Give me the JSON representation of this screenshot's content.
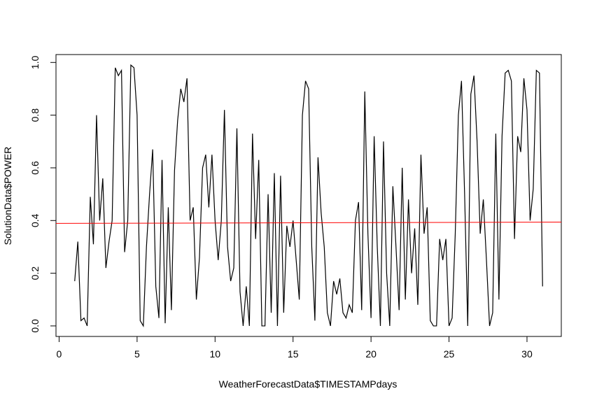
{
  "chart_data": {
    "type": "line",
    "xlabel": "WeatherForecastData$TIMESTAMPdays",
    "ylabel": "SolutionData$POWER",
    "x": [
      1.0,
      1.2,
      1.4,
      1.6,
      1.8,
      2.0,
      2.2,
      2.4,
      2.6,
      2.8,
      3.0,
      3.2,
      3.4,
      3.6,
      3.8,
      4.0,
      4.2,
      4.4,
      4.6,
      4.8,
      5.0,
      5.2,
      5.4,
      5.6,
      5.8,
      6.0,
      6.2,
      6.4,
      6.6,
      6.8,
      7.0,
      7.2,
      7.4,
      7.6,
      7.8,
      8.0,
      8.2,
      8.4,
      8.6,
      8.8,
      9.0,
      9.2,
      9.4,
      9.6,
      9.8,
      10.0,
      10.2,
      10.4,
      10.6,
      10.8,
      11.0,
      11.2,
      11.4,
      11.6,
      11.8,
      12.0,
      12.2,
      12.4,
      12.6,
      12.8,
      13.0,
      13.2,
      13.4,
      13.6,
      13.8,
      14.0,
      14.2,
      14.4,
      14.6,
      14.8,
      15.0,
      15.2,
      15.4,
      15.6,
      15.8,
      16.0,
      16.2,
      16.4,
      16.6,
      16.8,
      17.0,
      17.2,
      17.4,
      17.6,
      17.8,
      18.0,
      18.2,
      18.4,
      18.6,
      18.8,
      19.0,
      19.2,
      19.4,
      19.6,
      19.8,
      20.0,
      20.2,
      20.4,
      20.6,
      20.8,
      21.0,
      21.2,
      21.4,
      21.6,
      21.8,
      22.0,
      22.2,
      22.4,
      22.6,
      22.8,
      23.0,
      23.2,
      23.4,
      23.6,
      23.8,
      24.0,
      24.2,
      24.4,
      24.6,
      24.8,
      25.0,
      25.2,
      25.4,
      25.6,
      25.8,
      26.0,
      26.2,
      26.4,
      26.6,
      26.8,
      27.0,
      27.2,
      27.4,
      27.6,
      27.8,
      28.0,
      28.2,
      28.4,
      28.6,
      28.8,
      29.0,
      29.2,
      29.4,
      29.6,
      29.8,
      30.0,
      30.2,
      30.4,
      30.6,
      30.8,
      31.0
    ],
    "series": [
      {
        "color": "#000000",
        "values": [
          0.17,
          0.32,
          0.02,
          0.03,
          0.0,
          0.49,
          0.31,
          0.8,
          0.4,
          0.56,
          0.22,
          0.32,
          0.4,
          0.98,
          0.95,
          0.97,
          0.28,
          0.4,
          0.99,
          0.98,
          0.8,
          0.02,
          0.0,
          0.3,
          0.5,
          0.67,
          0.15,
          0.03,
          0.63,
          0.01,
          0.45,
          0.06,
          0.59,
          0.78,
          0.9,
          0.85,
          0.94,
          0.4,
          0.45,
          0.1,
          0.26,
          0.6,
          0.65,
          0.45,
          0.65,
          0.4,
          0.25,
          0.4,
          0.82,
          0.3,
          0.17,
          0.22,
          0.75,
          0.13,
          0.0,
          0.15,
          0.0,
          0.73,
          0.33,
          0.63,
          0.0,
          0.0,
          0.5,
          0.05,
          0.58,
          0.0,
          0.57,
          0.05,
          0.38,
          0.3,
          0.4,
          0.25,
          0.1,
          0.8,
          0.93,
          0.9,
          0.3,
          0.02,
          0.64,
          0.43,
          0.3,
          0.05,
          0.0,
          0.17,
          0.12,
          0.18,
          0.05,
          0.03,
          0.08,
          0.05,
          0.4,
          0.47,
          0.06,
          0.89,
          0.35,
          0.03,
          0.72,
          0.3,
          0.0,
          0.7,
          0.2,
          0.0,
          0.53,
          0.3,
          0.06,
          0.6,
          0.1,
          0.48,
          0.2,
          0.37,
          0.08,
          0.65,
          0.35,
          0.45,
          0.02,
          0.0,
          0.0,
          0.33,
          0.25,
          0.33,
          0.0,
          0.03,
          0.35,
          0.8,
          0.93,
          0.5,
          0.0,
          0.88,
          0.95,
          0.7,
          0.35,
          0.48,
          0.25,
          0.0,
          0.05,
          0.73,
          0.1,
          0.72,
          0.96,
          0.97,
          0.93,
          0.33,
          0.72,
          0.66,
          0.94,
          0.82,
          0.4,
          0.52,
          0.97,
          0.96,
          0.15
        ]
      }
    ],
    "trend_line": {
      "color": "#ff0000",
      "values": [
        0.389,
        0.394
      ]
    },
    "xlim": [
      -0.2,
      32.2
    ],
    "xticks": [
      0,
      5,
      10,
      15,
      20,
      25,
      30
    ],
    "ylim": [
      -0.04,
      1.03
    ],
    "yticks": [
      {
        "value": 0,
        "label": "0.0"
      },
      0.2,
      0.4,
      0.6,
      0.8,
      {
        "value": 1,
        "label": "1.0"
      }
    ]
  }
}
